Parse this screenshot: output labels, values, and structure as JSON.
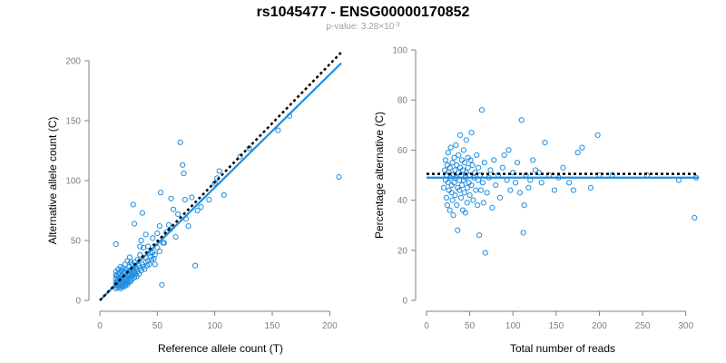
{
  "header": {
    "title": "rs1045477 - ENSG00000170852",
    "pvalue_prefix": "p-value: 3.28×10",
    "pvalue_exp": "-3"
  },
  "colors": {
    "points": "#1f8de0",
    "fit": "#1f8de0",
    "reference": "#000000",
    "axis": "#808080"
  },
  "chart_data": [
    {
      "type": "scatter",
      "title": "",
      "xlabel": "Reference allele count (T)",
      "ylabel": "Alternative allele count (C)",
      "xlim": [
        0,
        210
      ],
      "ylim": [
        0,
        200
      ],
      "xticks": [
        0,
        50,
        100,
        150,
        200
      ],
      "yticks": [
        0,
        50,
        100,
        150,
        200
      ],
      "fit_line": {
        "x": [
          0,
          210
        ],
        "y": [
          0,
          198
        ]
      },
      "reference_line": {
        "x": [
          0,
          210
        ],
        "y": [
          0,
          207
        ]
      },
      "points": [
        [
          14,
          10
        ],
        [
          14,
          13
        ],
        [
          14,
          15
        ],
        [
          14,
          18
        ],
        [
          14,
          21
        ],
        [
          14,
          24
        ],
        [
          15,
          11
        ],
        [
          15,
          16
        ],
        [
          15,
          20
        ],
        [
          16,
          12
        ],
        [
          16,
          14
        ],
        [
          16,
          17
        ],
        [
          16,
          22
        ],
        [
          16,
          26
        ],
        [
          17,
          11
        ],
        [
          17,
          15
        ],
        [
          17,
          19
        ],
        [
          17,
          23
        ],
        [
          18,
          10
        ],
        [
          18,
          13
        ],
        [
          18,
          18
        ],
        [
          18,
          21
        ],
        [
          18,
          28
        ],
        [
          19,
          12
        ],
        [
          19,
          16
        ],
        [
          19,
          20
        ],
        [
          19,
          25
        ],
        [
          20,
          11
        ],
        [
          20,
          14
        ],
        [
          20,
          18
        ],
        [
          20,
          22
        ],
        [
          20,
          27
        ],
        [
          21,
          13
        ],
        [
          21,
          17
        ],
        [
          21,
          24
        ],
        [
          22,
          12
        ],
        [
          22,
          15
        ],
        [
          22,
          19
        ],
        [
          22,
          23
        ],
        [
          22,
          30
        ],
        [
          23,
          14
        ],
        [
          23,
          18
        ],
        [
          23,
          26
        ],
        [
          24,
          13
        ],
        [
          24,
          16
        ],
        [
          24,
          21
        ],
        [
          24,
          33
        ],
        [
          25,
          15
        ],
        [
          25,
          19
        ],
        [
          25,
          24
        ],
        [
          25,
          28
        ],
        [
          26,
          17
        ],
        [
          26,
          22
        ],
        [
          26,
          36
        ],
        [
          27,
          16
        ],
        [
          27,
          20
        ],
        [
          27,
          25
        ],
        [
          28,
          18
        ],
        [
          28,
          23
        ],
        [
          28,
          30
        ],
        [
          29,
          21
        ],
        [
          29,
          27
        ],
        [
          30,
          19
        ],
        [
          30,
          24
        ],
        [
          30,
          32
        ],
        [
          31,
          22
        ],
        [
          31,
          28
        ],
        [
          32,
          20
        ],
        [
          32,
          26
        ],
        [
          33,
          24
        ],
        [
          33,
          34
        ],
        [
          34,
          22
        ],
        [
          34,
          29
        ],
        [
          35,
          27
        ],
        [
          35,
          38
        ],
        [
          36,
          25
        ],
        [
          37,
          30
        ],
        [
          38,
          28
        ],
        [
          39,
          26
        ],
        [
          40,
          32
        ],
        [
          40,
          36
        ],
        [
          41,
          29
        ],
        [
          42,
          33
        ],
        [
          43,
          30
        ],
        [
          44,
          36
        ],
        [
          45,
          34
        ],
        [
          46,
          40
        ],
        [
          48,
          38
        ],
        [
          50,
          44
        ],
        [
          52,
          41
        ],
        [
          55,
          48
        ],
        [
          14,
          47
        ],
        [
          27,
          32
        ],
        [
          29,
          80
        ],
        [
          30,
          64
        ],
        [
          35,
          45
        ],
        [
          36,
          50
        ],
        [
          37,
          73
        ],
        [
          38,
          44
        ],
        [
          40,
          55
        ],
        [
          42,
          45
        ],
        [
          44,
          40
        ],
        [
          46,
          52
        ],
        [
          47,
          35
        ],
        [
          48,
          30
        ],
        [
          50,
          56
        ],
        [
          52,
          62
        ],
        [
          53,
          90
        ],
        [
          54,
          13
        ],
        [
          56,
          48
        ],
        [
          58,
          57
        ],
        [
          60,
          63
        ],
        [
          61,
          59
        ],
        [
          62,
          85
        ],
        [
          64,
          76
        ],
        [
          66,
          53
        ],
        [
          68,
          72
        ],
        [
          70,
          132
        ],
        [
          72,
          113
        ],
        [
          73,
          106
        ],
        [
          74,
          84
        ],
        [
          75,
          68
        ],
        [
          77,
          62
        ],
        [
          80,
          86
        ],
        [
          83,
          29
        ],
        [
          85,
          75
        ],
        [
          88,
          78
        ],
        [
          95,
          84
        ],
        [
          100,
          98
        ],
        [
          102,
          102
        ],
        [
          104,
          108
        ],
        [
          108,
          88
        ],
        [
          122,
          120
        ],
        [
          130,
          127
        ],
        [
          155,
          142
        ],
        [
          165,
          154
        ],
        [
          208,
          103
        ]
      ]
    },
    {
      "type": "scatter",
      "title": "",
      "xlabel": "Total number of reads",
      "ylabel": "Percentage alternative (C)",
      "xlim": [
        0,
        315
      ],
      "ylim": [
        0,
        100
      ],
      "xticks": [
        0,
        50,
        100,
        150,
        200,
        250,
        300
      ],
      "yticks": [
        0,
        20,
        40,
        60,
        80,
        100
      ],
      "fit_line": {
        "x": [
          0,
          315
        ],
        "y": [
          49,
          49
        ]
      },
      "reference_line": {
        "x": [
          0,
          315
        ],
        "y": [
          50.5,
          50.5
        ]
      },
      "points": [
        [
          20,
          45
        ],
        [
          21,
          52
        ],
        [
          22,
          48
        ],
        [
          22,
          56
        ],
        [
          23,
          41
        ],
        [
          23,
          50
        ],
        [
          24,
          54
        ],
        [
          24,
          38
        ],
        [
          25,
          47
        ],
        [
          25,
          59
        ],
        [
          26,
          44
        ],
        [
          26,
          51
        ],
        [
          27,
          36
        ],
        [
          27,
          53
        ],
        [
          28,
          49
        ],
        [
          28,
          61
        ],
        [
          29,
          43
        ],
        [
          29,
          46
        ],
        [
          30,
          55
        ],
        [
          30,
          40
        ],
        [
          31,
          50
        ],
        [
          31,
          34
        ],
        [
          32,
          47
        ],
        [
          32,
          57
        ],
        [
          33,
          52
        ],
        [
          33,
          42
        ],
        [
          34,
          49
        ],
        [
          34,
          62
        ],
        [
          35,
          38
        ],
        [
          35,
          54
        ],
        [
          36,
          45
        ],
        [
          36,
          28
        ],
        [
          37,
          51
        ],
        [
          37,
          58
        ],
        [
          38,
          44
        ],
        [
          38,
          48
        ],
        [
          39,
          53
        ],
        [
          39,
          66
        ],
        [
          40,
          41
        ],
        [
          40,
          50
        ],
        [
          41,
          46
        ],
        [
          41,
          56
        ],
        [
          42,
          36
        ],
        [
          42,
          52
        ],
        [
          43,
          48
        ],
        [
          43,
          60
        ],
        [
          44,
          43
        ],
        [
          44,
          55
        ],
        [
          45,
          49
        ],
        [
          45,
          35
        ],
        [
          46,
          51
        ],
        [
          46,
          64
        ],
        [
          47,
          45
        ],
        [
          47,
          39
        ],
        [
          48,
          53
        ],
        [
          48,
          57
        ],
        [
          49,
          47
        ],
        [
          50,
          42
        ],
        [
          50,
          50
        ],
        [
          51,
          56
        ],
        [
          52,
          46
        ],
        [
          52,
          67
        ],
        [
          53,
          54
        ],
        [
          54,
          40
        ],
        [
          55,
          49
        ],
        [
          56,
          51
        ],
        [
          57,
          44
        ],
        [
          58,
          58
        ],
        [
          59,
          38
        ],
        [
          60,
          48
        ],
        [
          60,
          53
        ],
        [
          61,
          26
        ],
        [
          62,
          50
        ],
        [
          63,
          44
        ],
        [
          64,
          76
        ],
        [
          65,
          47
        ],
        [
          66,
          39
        ],
        [
          67,
          55
        ],
        [
          68,
          19
        ],
        [
          70,
          43
        ],
        [
          72,
          49
        ],
        [
          74,
          52
        ],
        [
          76,
          37
        ],
        [
          78,
          56
        ],
        [
          80,
          46
        ],
        [
          83,
          50
        ],
        [
          85,
          41
        ],
        [
          88,
          53
        ],
        [
          90,
          58
        ],
        [
          93,
          48
        ],
        [
          95,
          60
        ],
        [
          97,
          44
        ],
        [
          100,
          51
        ],
        [
          103,
          47
        ],
        [
          105,
          55
        ],
        [
          108,
          43
        ],
        [
          110,
          72
        ],
        [
          112,
          27
        ],
        [
          113,
          38
        ],
        [
          115,
          50
        ],
        [
          118,
          45
        ],
        [
          120,
          48
        ],
        [
          123,
          56
        ],
        [
          126,
          52
        ],
        [
          130,
          51
        ],
        [
          133,
          47
        ],
        [
          137,
          63
        ],
        [
          142,
          50
        ],
        [
          148,
          44
        ],
        [
          153,
          49
        ],
        [
          158,
          53
        ],
        [
          165,
          47
        ],
        [
          170,
          44
        ],
        [
          175,
          59
        ],
        [
          180,
          61
        ],
        [
          190,
          45
        ],
        [
          198,
          66
        ],
        [
          200,
          50
        ],
        [
          215,
          50
        ],
        [
          255,
          50
        ],
        [
          292,
          48
        ],
        [
          310,
          33
        ],
        [
          312,
          49
        ]
      ]
    }
  ]
}
